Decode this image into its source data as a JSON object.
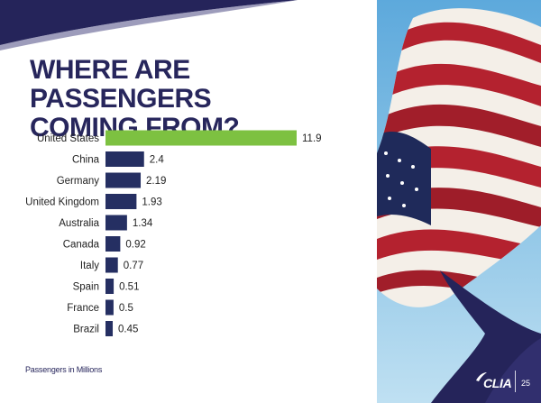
{
  "slide": {
    "title_line1": "WHERE ARE PASSENGERS",
    "title_line2": "COMING FROM?",
    "footnote": "Passengers in Millions",
    "logo_text": "CLIA",
    "page_number": "25"
  },
  "colors": {
    "title": "#27265c",
    "bar_default": "#252f62",
    "bar_highlight": "#7dc141",
    "label": "#222222",
    "banner_navy": "#25245a"
  },
  "image": {
    "description_icon": "american-flag-photo"
  },
  "chart_data": {
    "type": "bar",
    "orientation": "horizontal",
    "categories": [
      "United States",
      "China",
      "Germany",
      "United Kingdom",
      "Australia",
      "Canada",
      "Italy",
      "Spain",
      "France",
      "Brazil"
    ],
    "values": [
      11.9,
      2.4,
      2.19,
      1.93,
      1.34,
      0.92,
      0.77,
      0.51,
      0.5,
      0.45
    ],
    "value_labels": [
      "11.9",
      "2.4",
      "2.19",
      "1.93",
      "1.34",
      "0.92",
      "0.77",
      "0.51",
      "0.5",
      "0.45"
    ],
    "highlight_index": 0,
    "xlim": [
      0,
      11.9
    ],
    "grid": false,
    "legend": false
  }
}
